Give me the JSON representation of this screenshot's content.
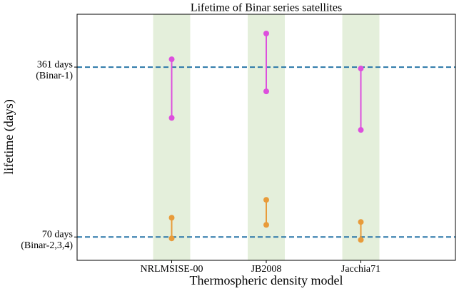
{
  "chart_data": {
    "type": "dumbbell",
    "title": "Lifetime of Binar series satellites",
    "x_label": "Thermospheric density model",
    "y_label": "lifetime (days)",
    "categories": [
      "NRLMSISE-00",
      "JB2008",
      "Jacchia71"
    ],
    "series": [
      {
        "color": "#dd4fdd",
        "low": [
          274,
          319.4,
          253.4
        ],
        "high": [
          374.4,
          418.5,
          358.6
        ]
      },
      {
        "color": "#e89b3a",
        "low": [
          67.6,
          90.8,
          65
        ],
        "high": [
          103,
          133.6,
          95.7
        ]
      }
    ],
    "ylim": [
      30,
      451.5
    ],
    "yticks": [
      {
        "value": 70,
        "label": "70 days\n(Binar-2,3,4)"
      },
      {
        "value": 361,
        "label": "361 days\n(Binar-1)"
      }
    ],
    "grid": true,
    "grid_color": "#2a77a8",
    "band_color": "#e4efdb"
  }
}
